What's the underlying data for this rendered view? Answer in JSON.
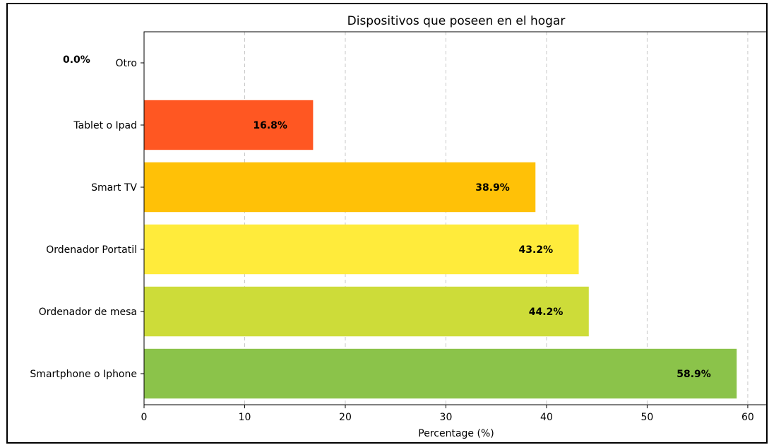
{
  "chart_data": {
    "type": "bar",
    "orientation": "horizontal",
    "title": "Dispositivos que poseen en el hogar",
    "xlabel": "Percentage (%)",
    "ylabel": "",
    "xlim": [
      0,
      61.9
    ],
    "xticks": [
      0,
      10,
      20,
      30,
      40,
      50,
      60
    ],
    "grid": "x-dashed",
    "categories": [
      "Otro",
      "Tablet o Ipad",
      "Smart TV",
      "Ordenador Portatil",
      "Ordenador de mesa",
      "Smartphone o Iphone"
    ],
    "values": [
      0.0,
      16.8,
      38.9,
      43.2,
      44.2,
      58.9
    ],
    "labels": [
      "0.0%",
      "16.8%",
      "38.9%",
      "43.2%",
      "44.2%",
      "58.9%"
    ],
    "colors": [
      "#FF5722",
      "#FF5722",
      "#FFC107",
      "#FFEB3B",
      "#CDDC39",
      "#8BC34A"
    ]
  }
}
